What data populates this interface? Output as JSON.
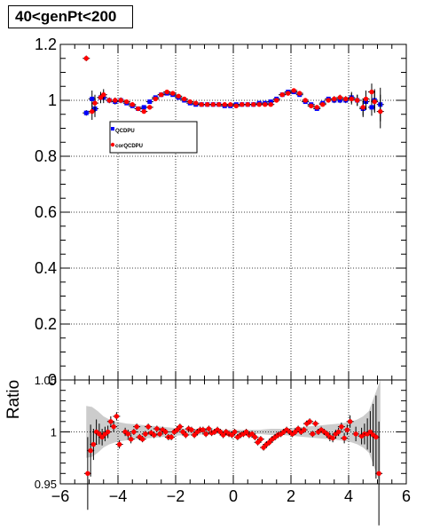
{
  "title": "40<genPt<200",
  "chart_data": [
    {
      "type": "scatter",
      "panel": "main",
      "xlim": [
        -6,
        6
      ],
      "ylim": [
        0,
        1.2
      ],
      "ylabel": "",
      "y_ticks": [
        "0",
        "0.2",
        "0.4",
        "0.6",
        "0.8",
        "1",
        "1.2"
      ],
      "y_tick_values": [
        0,
        0.2,
        0.4,
        0.6,
        0.8,
        1.0,
        1.2
      ],
      "grid": true,
      "legend": {
        "placement": "upper-left",
        "entries": [
          "QCDPU",
          "corQCDPU"
        ]
      },
      "series": [
        {
          "name": "QCDPU",
          "color": "#0000ff",
          "marker": "square",
          "x": [
            -5.1,
            -4.9,
            -4.8,
            -4.6,
            -4.5,
            -4.3,
            -4.1,
            -3.9,
            -3.7,
            -3.5,
            -3.3,
            -3.1,
            -2.9,
            -2.7,
            -2.5,
            -2.3,
            -2.1,
            -1.9,
            -1.7,
            -1.5,
            -1.3,
            -1.1,
            -0.9,
            -0.7,
            -0.5,
            -0.3,
            -0.1,
            0.1,
            0.3,
            0.5,
            0.7,
            0.9,
            1.1,
            1.3,
            1.5,
            1.7,
            1.9,
            2.1,
            2.3,
            2.5,
            2.7,
            2.9,
            3.1,
            3.3,
            3.5,
            3.7,
            3.9,
            4.1,
            4.3,
            4.5,
            4.6,
            4.8,
            4.9,
            5.1
          ],
          "y": [
            0.955,
            1.005,
            0.97,
            1.01,
            1.01,
            1.0,
            0.995,
            1.0,
            0.99,
            0.98,
            0.97,
            0.975,
            0.995,
            1.01,
            1.02,
            1.025,
            1.02,
            1.01,
            1.0,
            0.99,
            0.985,
            0.985,
            0.985,
            0.985,
            0.985,
            0.98,
            0.98,
            0.985,
            0.985,
            0.985,
            0.985,
            0.99,
            0.99,
            0.995,
            1.005,
            1.02,
            1.03,
            1.03,
            1.02,
            0.995,
            0.985,
            0.97,
            0.99,
            1.005,
            1.0,
            1.0,
            1.0,
            1.01,
            1.0,
            0.97,
            0.995,
            0.975,
            1.0,
            0.985
          ],
          "yerr": [
            0.01,
            0.03,
            0.03,
            0.02,
            0.02,
            0.01,
            0.01,
            0.01,
            0.005,
            0.005,
            0.005,
            0.005,
            0.005,
            0.005,
            0.005,
            0.005,
            0.005,
            0.005,
            0.005,
            0.005,
            0.005,
            0.005,
            0.005,
            0.005,
            0.005,
            0.005,
            0.005,
            0.005,
            0.005,
            0.005,
            0.005,
            0.005,
            0.005,
            0.005,
            0.005,
            0.005,
            0.005,
            0.005,
            0.005,
            0.005,
            0.005,
            0.005,
            0.005,
            0.005,
            0.01,
            0.01,
            0.01,
            0.02,
            0.02,
            0.03,
            0.03,
            0.03,
            0.04,
            0.06
          ]
        },
        {
          "name": "corQCDPU",
          "color": "#ff0000",
          "marker": "circle",
          "x": [
            -5.1,
            -4.9,
            -4.8,
            -4.6,
            -4.5,
            -4.3,
            -4.1,
            -3.9,
            -3.7,
            -3.5,
            -3.3,
            -3.1,
            -2.9,
            -2.7,
            -2.5,
            -2.3,
            -2.1,
            -1.9,
            -1.7,
            -1.5,
            -1.3,
            -1.1,
            -0.9,
            -0.7,
            -0.5,
            -0.3,
            -0.1,
            0.1,
            0.3,
            0.5,
            0.7,
            0.9,
            1.1,
            1.3,
            1.5,
            1.7,
            1.9,
            2.1,
            2.3,
            2.5,
            2.7,
            2.9,
            3.1,
            3.3,
            3.5,
            3.7,
            3.9,
            4.1,
            4.3,
            4.5,
            4.6,
            4.8,
            4.9,
            5.1
          ],
          "y": [
            1.15,
            0.96,
            0.99,
            1.01,
            1.02,
            1.0,
            1.0,
            1.0,
            0.995,
            0.985,
            0.97,
            0.96,
            0.975,
            1.005,
            1.02,
            1.03,
            1.025,
            1.015,
            1.005,
            0.995,
            0.99,
            0.985,
            0.985,
            0.985,
            0.985,
            0.985,
            0.985,
            0.98,
            0.985,
            0.985,
            0.985,
            0.985,
            0.985,
            0.985,
            1.0,
            1.02,
            1.025,
            1.035,
            1.025,
            1.0,
            0.98,
            0.975,
            0.985,
            1.0,
            1.005,
            1.01,
            1.005,
            1.005,
            1.0,
            0.975,
            1.005,
            1.03,
            0.995,
            0.96
          ],
          "yerr": [
            0.01,
            0.03,
            0.03,
            0.02,
            0.02,
            0.01,
            0.01,
            0.01,
            0.005,
            0.005,
            0.005,
            0.005,
            0.005,
            0.005,
            0.005,
            0.005,
            0.005,
            0.005,
            0.005,
            0.005,
            0.005,
            0.005,
            0.005,
            0.005,
            0.005,
            0.005,
            0.005,
            0.005,
            0.005,
            0.005,
            0.005,
            0.005,
            0.005,
            0.005,
            0.005,
            0.005,
            0.005,
            0.005,
            0.005,
            0.005,
            0.005,
            0.005,
            0.005,
            0.005,
            0.01,
            0.01,
            0.01,
            0.02,
            0.02,
            0.03,
            0.03,
            0.03,
            0.04,
            0.06
          ]
        }
      ]
    },
    {
      "type": "scatter",
      "panel": "ratio",
      "xlim": [
        -6,
        6
      ],
      "ylim": [
        0.95,
        1.05
      ],
      "ylabel": "Ratio",
      "y_ticks": [
        "0.95",
        "1",
        "1.05"
      ],
      "y_tick_values": [
        0.95,
        1.0,
        1.05
      ],
      "x_ticks": [
        "−6",
        "−4",
        "−2",
        "0",
        "2",
        "4",
        "6"
      ],
      "x_tick_values": [
        -6,
        -4,
        -2,
        0,
        2,
        4,
        6
      ],
      "grid": true,
      "band": {
        "color": "#cccccc",
        "x": [
          -5.1,
          -4.9,
          -4.7,
          -4.5,
          -4.3,
          -4.1,
          -3.7,
          -3.3,
          -2.9,
          -2.5,
          -2.1,
          -1.7,
          -1.3,
          -0.9,
          -0.5,
          0.5,
          0.9,
          1.3,
          1.7,
          2.1,
          2.5,
          2.9,
          3.3,
          3.7,
          4.1,
          4.3,
          4.5,
          4.7,
          4.9,
          5.1
        ],
        "half_width": [
          0.025,
          0.024,
          0.02,
          0.015,
          0.012,
          0.01,
          0.008,
          0.007,
          0.006,
          0.005,
          0.004,
          0.003,
          0.003,
          0.002,
          0.002,
          0.002,
          0.002,
          0.003,
          0.003,
          0.004,
          0.005,
          0.006,
          0.007,
          0.008,
          0.01,
          0.012,
          0.015,
          0.02,
          0.035,
          0.05
        ]
      },
      "series": [
        {
          "name": "",
          "color": "#ff0000",
          "marker": "circle",
          "x": [
            -5.05,
            -4.95,
            -4.85,
            -4.75,
            -4.65,
            -4.55,
            -4.45,
            -4.35,
            -4.25,
            -4.15,
            -4.05,
            -3.95,
            -3.75,
            -3.65,
            -3.55,
            -3.45,
            -3.35,
            -3.25,
            -3.15,
            -3.05,
            -2.95,
            -2.85,
            -2.75,
            -2.65,
            -2.55,
            -2.45,
            -2.35,
            -2.25,
            -2.15,
            -2.05,
            -1.95,
            -1.85,
            -1.75,
            -1.65,
            -1.55,
            -1.45,
            -1.35,
            -1.25,
            -1.15,
            -1.05,
            -0.95,
            -0.85,
            -0.75,
            -0.65,
            -0.55,
            -0.45,
            -0.35,
            -0.25,
            -0.15,
            -0.05,
            0.05,
            0.15,
            0.25,
            0.35,
            0.45,
            0.55,
            0.65,
            0.75,
            0.85,
            0.95,
            1.05,
            1.15,
            1.25,
            1.35,
            1.45,
            1.55,
            1.65,
            1.75,
            1.85,
            1.95,
            2.05,
            2.15,
            2.25,
            2.35,
            2.45,
            2.55,
            2.65,
            2.75,
            2.85,
            2.95,
            3.05,
            3.15,
            3.25,
            3.35,
            3.45,
            3.55,
            3.65,
            3.75,
            3.85,
            3.95,
            4.05,
            4.25,
            4.45,
            4.55,
            4.65,
            4.75,
            4.85,
            4.95,
            5.05
          ],
          "y": [
            0.96,
            0.982,
            0.988,
            1.0,
            0.998,
            0.995,
            0.998,
            1.0,
            1.01,
            1.005,
            1.015,
            0.988,
            1.0,
            0.998,
            0.993,
            1.0,
            1.005,
            0.995,
            0.993,
            0.998,
            1.005,
            0.999,
            0.997,
            1.003,
            0.998,
            1.002,
            1.0,
            0.995,
            0.995,
            1.0,
            1.002,
            1.005,
            1.0,
            0.997,
            1.003,
            1.002,
            0.997,
            1.0,
            1.002,
            1.002,
            0.998,
            1.003,
            0.999,
            1.0,
            1.002,
            1.0,
            0.997,
            1.0,
            0.998,
            0.997,
            1.0,
            0.995,
            0.997,
            0.998,
            1.0,
            0.997,
            0.998,
            0.995,
            0.99,
            0.993,
            0.985,
            0.988,
            0.99,
            0.993,
            0.995,
            0.997,
            0.998,
            1.0,
            1.002,
            1.0,
            0.998,
            1.0,
            1.003,
            1.0,
            1.002,
            1.008,
            1.01,
            0.998,
            1.008,
            1.0,
            1.002,
            1.0,
            0.998,
            0.995,
            0.994,
            0.998,
            1.0,
            1.005,
            0.994,
            1.002,
            1.01,
            0.998,
            0.996,
            0.998,
            0.998,
            1.0,
            0.997,
            0.995,
            0.96
          ],
          "yerr": [
            0.035,
            0.025,
            0.015,
            0.012,
            0.01,
            0.008,
            0.007,
            0.006,
            0.005,
            0.005,
            0.004,
            0.004,
            0.004,
            0.004,
            0.004,
            0.003,
            0.003,
            0.003,
            0.003,
            0.003,
            0.003,
            0.003,
            0.003,
            0.003,
            0.003,
            0.003,
            0.003,
            0.003,
            0.003,
            0.003,
            0.003,
            0.003,
            0.003,
            0.003,
            0.003,
            0.003,
            0.003,
            0.003,
            0.003,
            0.003,
            0.003,
            0.003,
            0.003,
            0.003,
            0.003,
            0.003,
            0.003,
            0.003,
            0.003,
            0.003,
            0.003,
            0.003,
            0.003,
            0.003,
            0.003,
            0.003,
            0.003,
            0.003,
            0.003,
            0.003,
            0.003,
            0.003,
            0.003,
            0.003,
            0.003,
            0.003,
            0.003,
            0.003,
            0.003,
            0.003,
            0.003,
            0.003,
            0.003,
            0.003,
            0.003,
            0.003,
            0.003,
            0.003,
            0.003,
            0.003,
            0.003,
            0.003,
            0.003,
            0.004,
            0.004,
            0.004,
            0.004,
            0.004,
            0.005,
            0.005,
            0.006,
            0.007,
            0.008,
            0.01,
            0.015,
            0.02,
            0.03,
            0.04,
            0.05
          ]
        }
      ]
    }
  ]
}
